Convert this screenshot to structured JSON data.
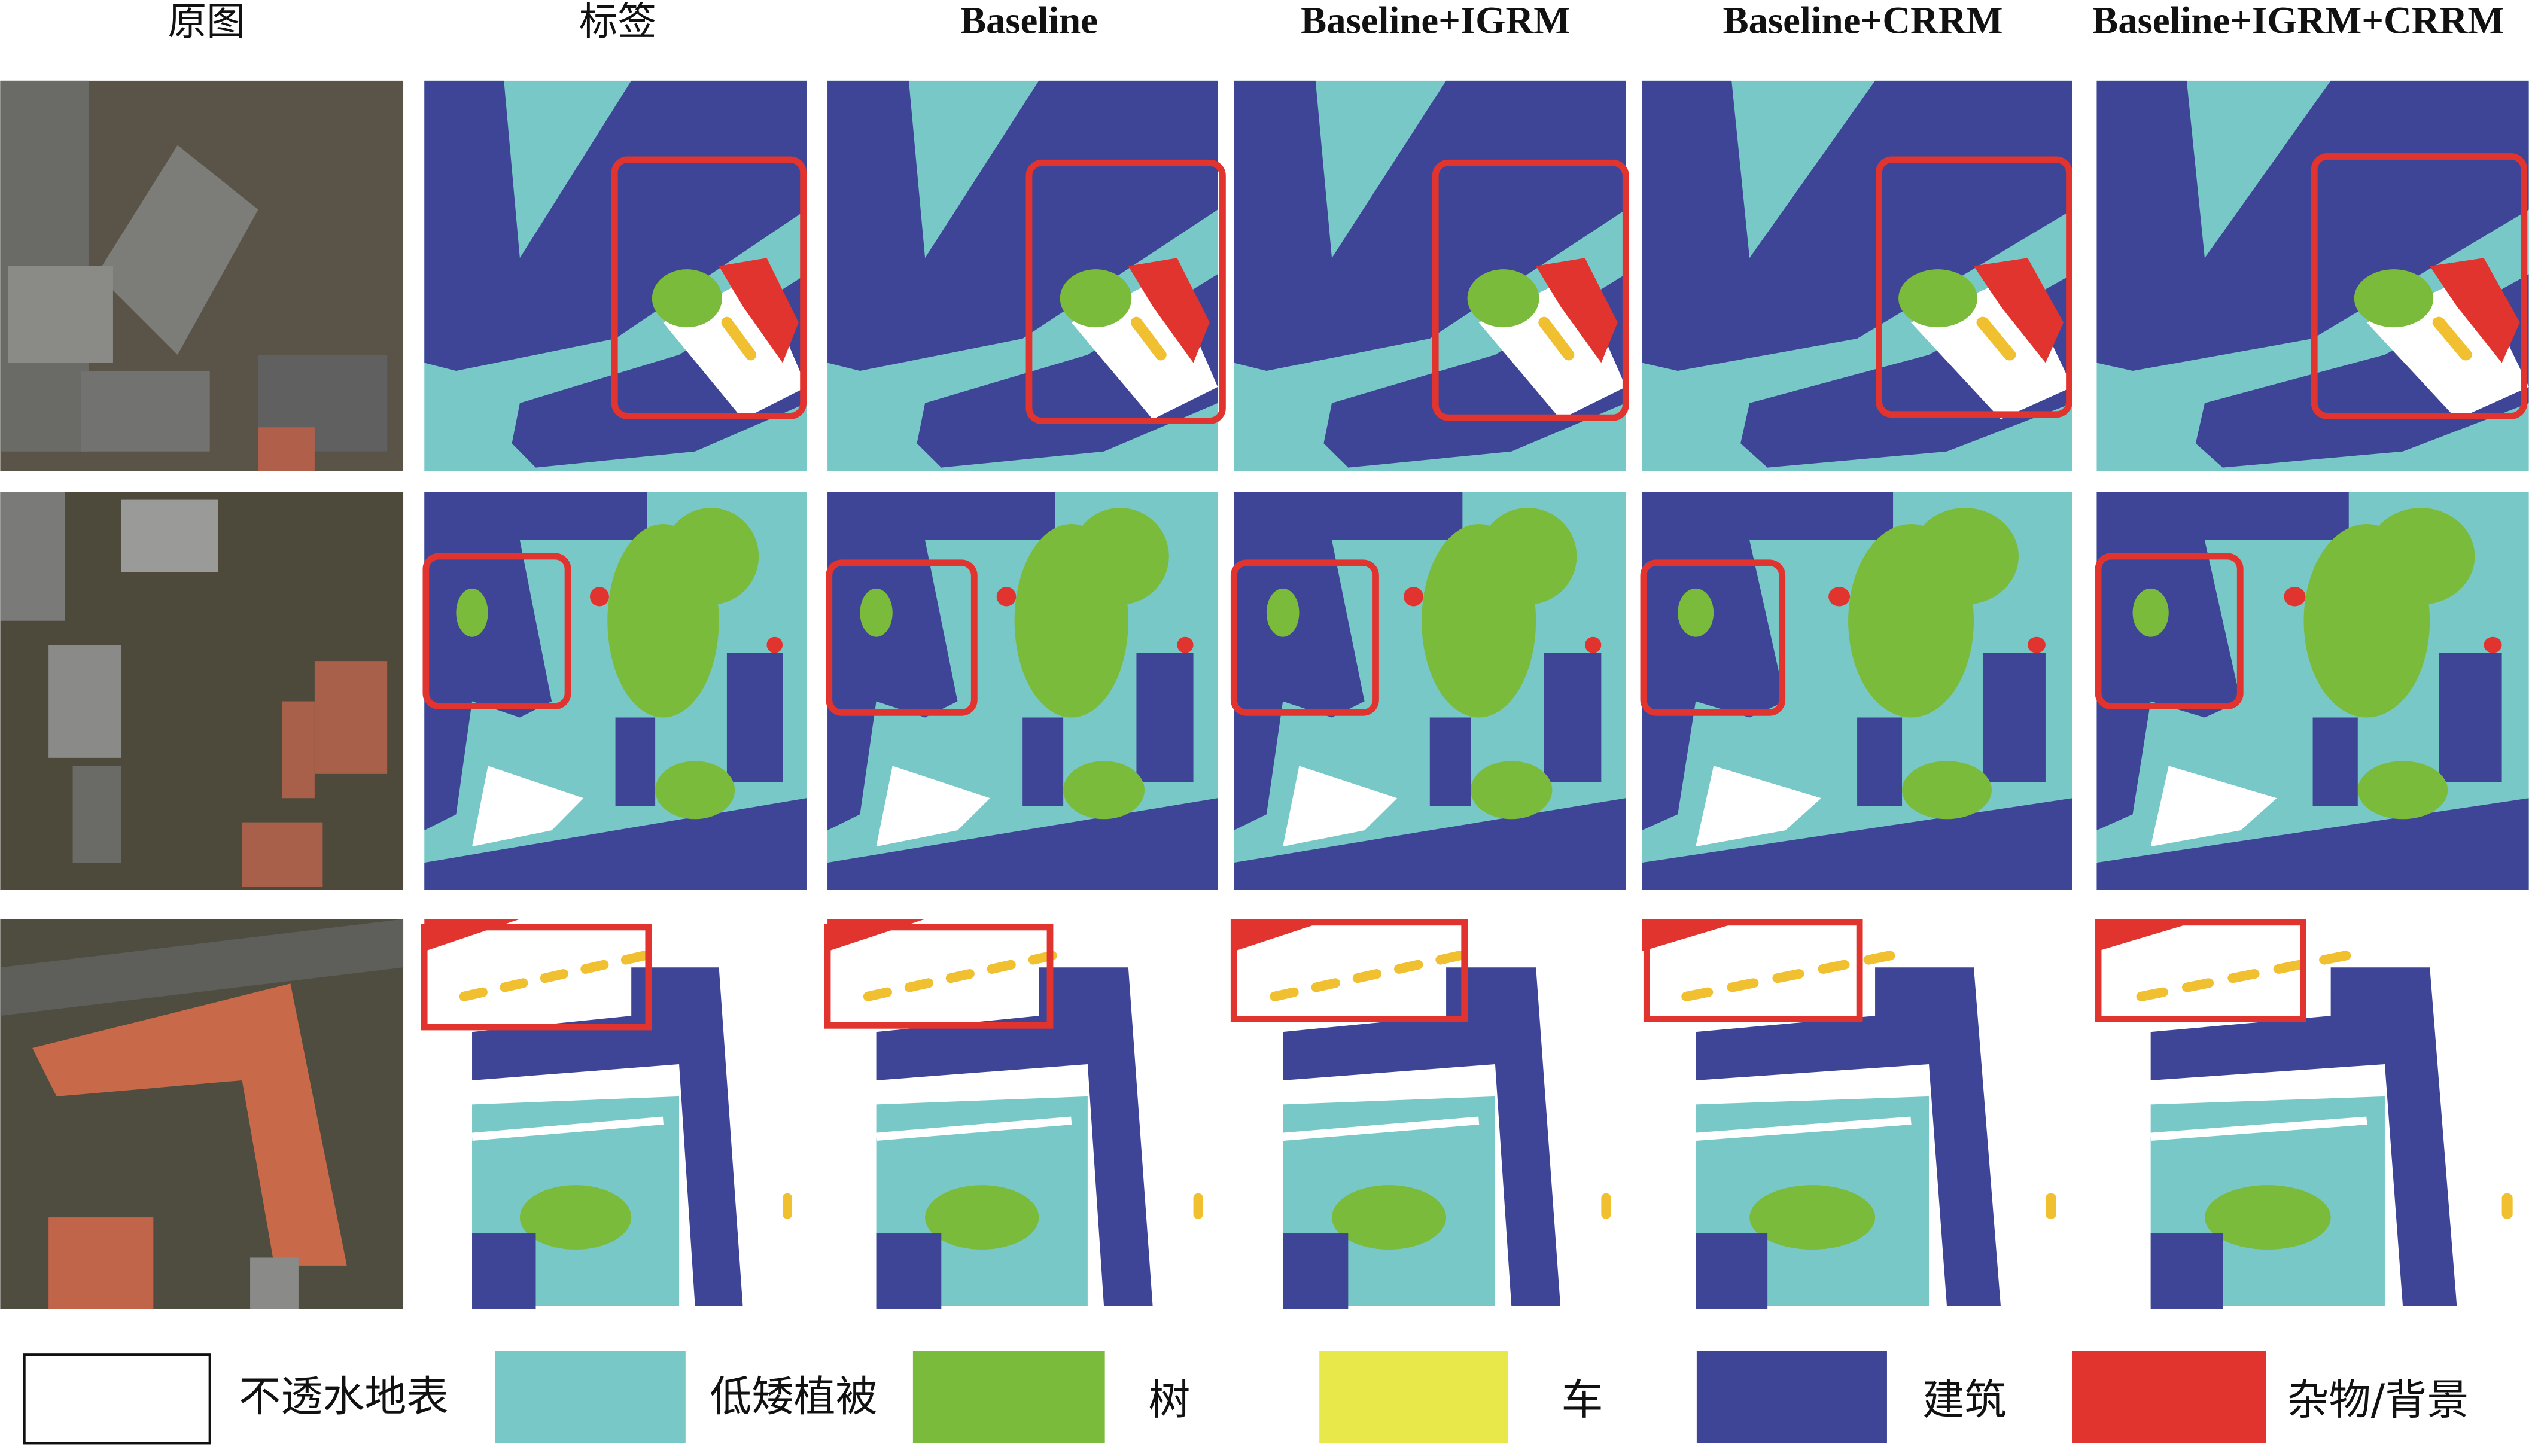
{
  "header": {
    "columns": [
      "原图",
      "标签",
      "Baseline",
      "Baseline+IGRM",
      "Baseline+CRRM",
      "Baseline+IGRM+CRRM"
    ]
  },
  "legend": {
    "items": [
      "不透水地表",
      "低矮植被",
      "树",
      "车",
      "建筑",
      "杂物/背景"
    ]
  }
}
